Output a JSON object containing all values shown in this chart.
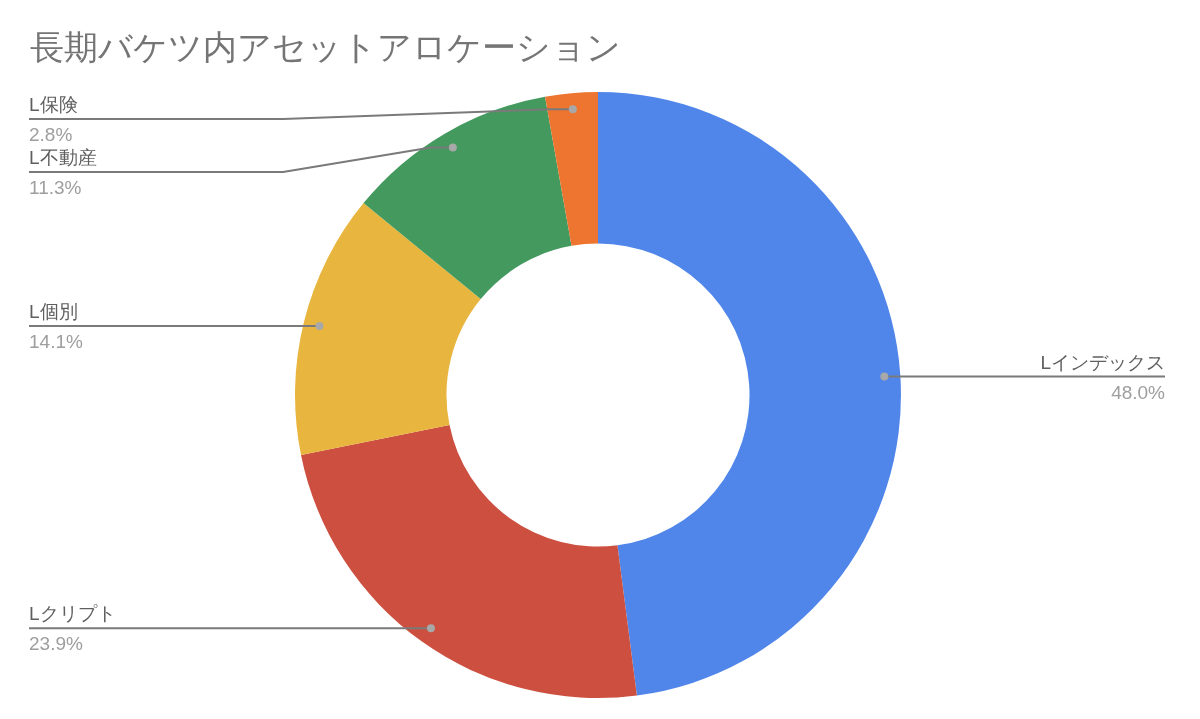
{
  "chart_data": {
    "type": "donut",
    "title": "長期バケツ内アセットアロケーション",
    "categories": [
      "Lインデックス",
      "Lクリプト",
      "L個別",
      "L不動産",
      "L保険"
    ],
    "values": [
      48.0,
      23.9,
      14.1,
      11.3,
      2.8
    ],
    "colors": [
      "#5086ea",
      "#cc4f3f",
      "#e8b63e",
      "#43995e",
      "#ee7530"
    ],
    "value_labels": [
      "48.0%",
      "23.9%",
      "14.1%",
      "11.3%",
      "2.8%"
    ]
  }
}
